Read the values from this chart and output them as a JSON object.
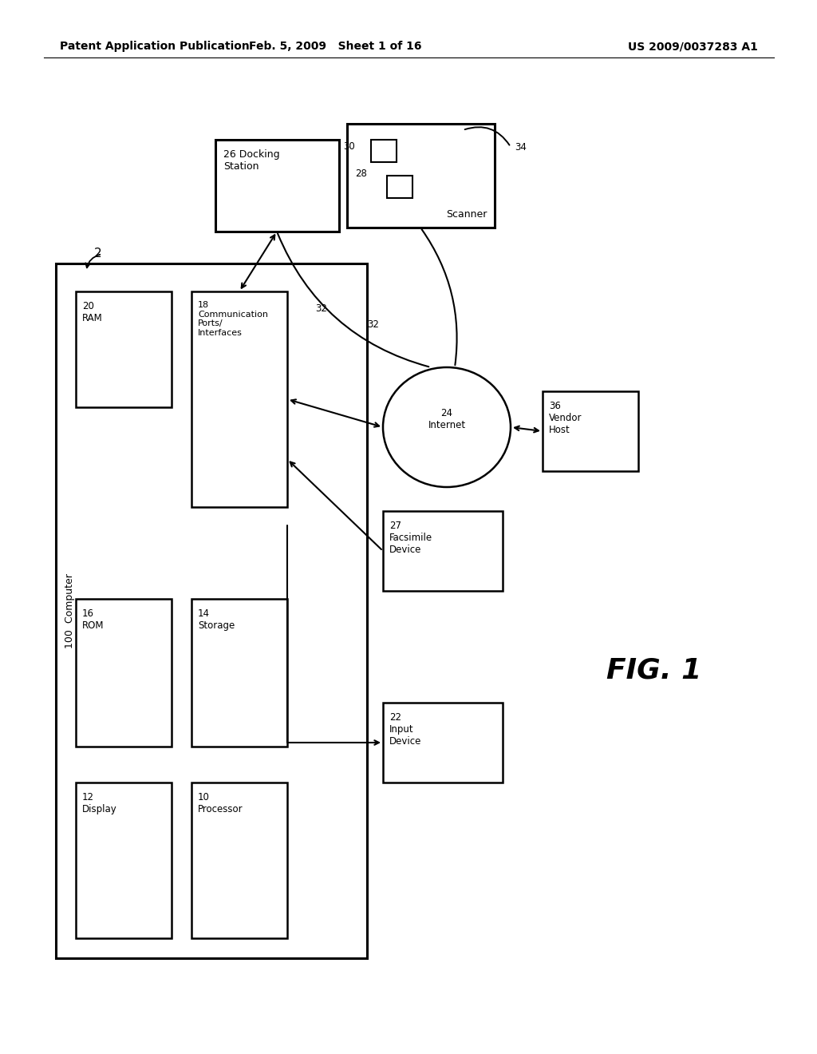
{
  "bg_color": "#ffffff",
  "header_left": "Patent Application Publication",
  "header_mid": "Feb. 5, 2009   Sheet 1 of 16",
  "header_right": "US 2009/0037283 A1",
  "fig_label": "FIG. 1"
}
